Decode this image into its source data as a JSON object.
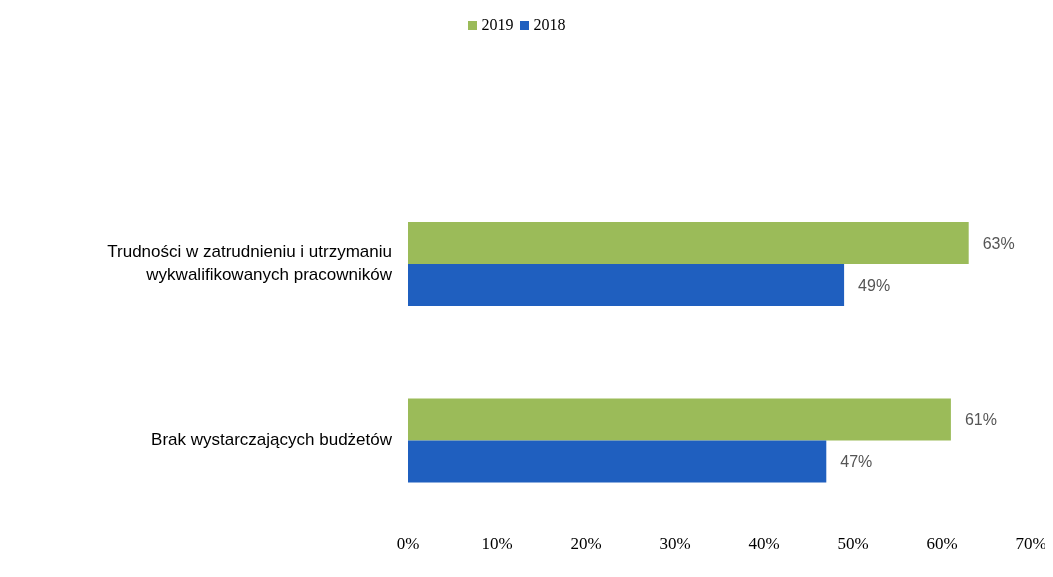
{
  "chart_data": {
    "type": "bar",
    "orientation": "horizontal",
    "legend": "top",
    "categories": [
      "Trudności w zatrudnieniu i utrzymaniu wykwalifikowanych pracowników",
      "Brak wystarczających budżetów"
    ],
    "series": [
      {
        "name": "2019",
        "color": "#9bbb59",
        "values": [
          63,
          61
        ],
        "value_labels": [
          "63%",
          "61%"
        ]
      },
      {
        "name": "2018",
        "color": "#1f5fbf",
        "values": [
          49,
          47
        ],
        "value_labels": [
          "49%",
          "47%"
        ]
      }
    ],
    "xlim": [
      0,
      70
    ],
    "xticks": [
      {
        "value": 0,
        "label": "0%"
      },
      {
        "value": 10,
        "label": "10%"
      },
      {
        "value": 20,
        "label": "20%"
      },
      {
        "value": 30,
        "label": "30%"
      },
      {
        "value": 40,
        "label": "40%"
      },
      {
        "value": 50,
        "label": "50%"
      },
      {
        "value": 60,
        "label": "60%"
      },
      {
        "value": 70,
        "label": "70%"
      }
    ],
    "grid": false
  }
}
